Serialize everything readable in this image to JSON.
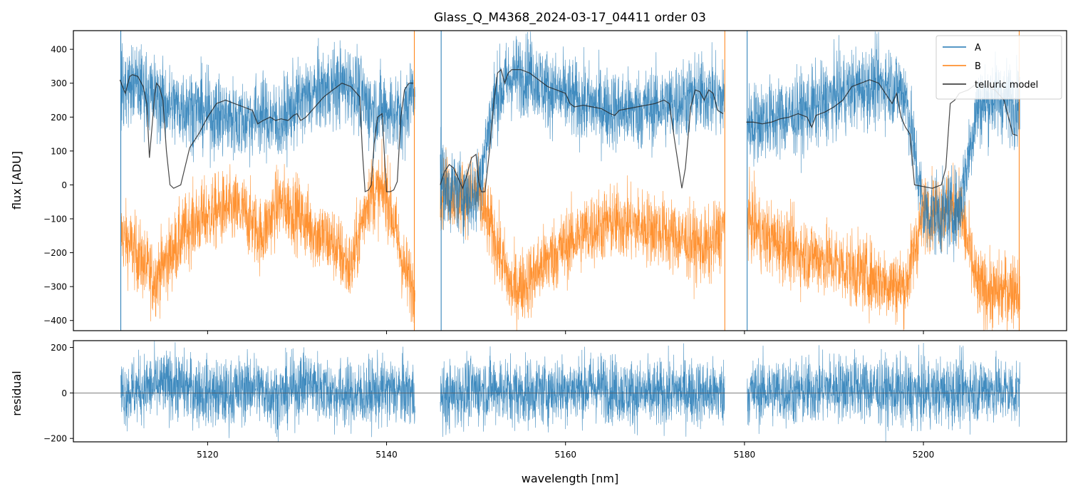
{
  "chart_data": [
    {
      "type": "line",
      "title": "Glass_Q_M4368_2024-03-17_04411  order 03",
      "xlabel": "",
      "ylabel": "flux [ADU]",
      "xlim": [
        5105,
        5216
      ],
      "ylim": [
        -430,
        455
      ],
      "yticks": [
        400,
        300,
        200,
        100,
        0,
        -100,
        -200,
        -300,
        -400
      ],
      "ytick_labels": [
        "400",
        "300",
        "200",
        "100",
        "0",
        "−100",
        "−200",
        "−300",
        "−400"
      ],
      "xticks": [
        5120,
        5140,
        5160,
        5180,
        5200
      ],
      "grid": false,
      "legend": {
        "placement": "top-right",
        "entries": [
          "A",
          "B",
          "telluric model"
        ]
      },
      "colors": {
        "A": "#1f77b4",
        "B": "#ff7f0e",
        "telluric model": "#262626"
      },
      "x_segments": [
        [
          5110.3,
          5143.2
        ],
        [
          5146.0,
          5177.8
        ],
        [
          5180.3,
          5210.8
        ]
      ],
      "series": [
        {
          "name": "A",
          "x": [
            5110.5,
            5112,
            5114,
            5116,
            5118,
            5120,
            5122,
            5124,
            5126,
            5128,
            5130,
            5132,
            5134,
            5136,
            5138,
            5140,
            5142,
            5143,
            5146.5,
            5148,
            5150,
            5152,
            5154,
            5156,
            5158,
            5160,
            5162,
            5164,
            5166,
            5168,
            5170,
            5172,
            5174,
            5176,
            5177.5,
            5180.5,
            5182,
            5184,
            5186,
            5188,
            5190,
            5192,
            5194,
            5196,
            5198,
            5200,
            5202,
            5204,
            5206,
            5208,
            5210.5
          ],
          "y": [
            280,
            300,
            260,
            230,
            230,
            210,
            200,
            190,
            210,
            180,
            240,
            270,
            290,
            300,
            230,
            220,
            200,
            300,
            -10,
            -20,
            -40,
            250,
            320,
            330,
            280,
            260,
            240,
            230,
            220,
            220,
            230,
            240,
            260,
            270,
            250,
            180,
            190,
            200,
            210,
            230,
            260,
            280,
            290,
            300,
            270,
            -80,
            -90,
            -70,
            230,
            260,
            240
          ],
          "noise": 60
        },
        {
          "name": "B",
          "x": [
            5110.5,
            5112,
            5114,
            5116,
            5118,
            5120,
            5122,
            5124,
            5126,
            5128,
            5130,
            5132,
            5134,
            5136,
            5138,
            5140,
            5142,
            5143,
            5146.5,
            5148,
            5150,
            5152,
            5154,
            5156,
            5158,
            5160,
            5162,
            5164,
            5166,
            5168,
            5170,
            5172,
            5174,
            5176,
            5177.5,
            5180.5,
            5182,
            5184,
            5186,
            5188,
            5190,
            5192,
            5194,
            5196,
            5198,
            5200,
            5202,
            5204,
            5206,
            5208,
            5210.5
          ],
          "y": [
            -150,
            -200,
            -280,
            -200,
            -120,
            -90,
            -70,
            -80,
            -150,
            -50,
            -80,
            -140,
            -170,
            -250,
            -30,
            -20,
            -250,
            -300,
            0,
            -40,
            -20,
            -150,
            -310,
            -280,
            -220,
            -180,
            -140,
            -120,
            -110,
            -120,
            -130,
            -150,
            -170,
            -190,
            -130,
            -100,
            -150,
            -170,
            -200,
            -210,
            -230,
            -250,
            -270,
            -290,
            -300,
            -80,
            -70,
            -60,
            -300,
            -320,
            -300
          ],
          "noise": 55
        },
        {
          "name": "telluric model",
          "x": [
            5110.2,
            5110.8,
            5111.3,
            5111.6,
            5112.2,
            5112.8,
            5113.2,
            5113.5,
            5114.1,
            5114.3,
            5114.6,
            5115.0,
            5115.4,
            5115.8,
            5116.2,
            5117.0,
            5118.0,
            5119.0,
            5120.0,
            5121.0,
            5122.0,
            5123.0,
            5124.0,
            5125.0,
            5125.6,
            5126.2,
            5127.0,
            5127.6,
            5128.2,
            5129.0,
            5129.6,
            5130.0,
            5130.4,
            5131.0,
            5132.0,
            5133.0,
            5134.0,
            5135.0,
            5136.0,
            5137.0,
            5137.3,
            5137.6,
            5138.0,
            5138.3,
            5138.6,
            5139.0,
            5139.5,
            5140.0,
            5140.4,
            5140.8,
            5141.2,
            5141.6,
            5142.0,
            5142.5,
            5143.0,
            5146.0,
            5146.5,
            5147.0,
            5147.5,
            5148.0,
            5148.5,
            5149.0,
            5149.5,
            5150.0,
            5150.3,
            5150.6,
            5151.0,
            5151.5,
            5152.0,
            5152.4,
            5152.8,
            5153.2,
            5153.6,
            5154.0,
            5155.0,
            5156.0,
            5157.0,
            5158.0,
            5159.0,
            5160.0,
            5160.5,
            5161.0,
            5162.0,
            5163.0,
            5164.0,
            5165.0,
            5165.5,
            5166.0,
            5167.0,
            5168.0,
            5169.0,
            5170.0,
            5171.0,
            5171.6,
            5172.2,
            5172.6,
            5173.0,
            5173.4,
            5174.0,
            5174.5,
            5175.0,
            5175.5,
            5176.0,
            5176.5,
            5177.0,
            5177.6,
            5180.2,
            5181.0,
            5182.0,
            5183.0,
            5184.0,
            5185.0,
            5186.0,
            5187.0,
            5187.5,
            5188.0,
            5188.5,
            5189.0,
            5190.0,
            5191.0,
            5191.5,
            5192.0,
            5193.0,
            5194.0,
            5195.0,
            5196.0,
            5196.5,
            5197.0,
            5197.5,
            5198.0,
            5198.5,
            5199.0,
            5200.0,
            5201.0,
            5202.0,
            5202.5,
            5203.0,
            5203.5,
            5204.0,
            5205.0,
            5206.0,
            5207.0,
            5208.0,
            5209.0,
            5209.5,
            5210.0,
            5210.5
          ],
          "y": [
            310,
            270,
            320,
            325,
            320,
            290,
            240,
            80,
            270,
            300,
            290,
            250,
            100,
            0,
            -10,
            0,
            110,
            150,
            200,
            240,
            250,
            240,
            230,
            220,
            180,
            190,
            200,
            190,
            195,
            190,
            205,
            210,
            190,
            200,
            230,
            260,
            280,
            300,
            290,
            260,
            100,
            -20,
            -15,
            0,
            120,
            200,
            210,
            -20,
            -20,
            -15,
            10,
            200,
            280,
            300,
            300,
            0,
            40,
            60,
            50,
            20,
            -10,
            30,
            80,
            90,
            10,
            -20,
            -20,
            100,
            250,
            330,
            340,
            300,
            330,
            340,
            340,
            330,
            310,
            290,
            280,
            270,
            240,
            230,
            235,
            230,
            225,
            210,
            205,
            220,
            225,
            230,
            235,
            240,
            250,
            240,
            130,
            60,
            -10,
            50,
            230,
            280,
            275,
            250,
            280,
            270,
            220,
            210,
            185,
            185,
            180,
            185,
            195,
            200,
            210,
            200,
            170,
            205,
            210,
            215,
            230,
            250,
            270,
            290,
            300,
            310,
            300,
            260,
            240,
            270,
            200,
            170,
            150,
            0,
            -5,
            -10,
            0,
            50,
            240,
            250,
            270,
            280,
            300,
            290,
            280,
            250,
            200,
            150,
            145
          ]
        }
      ]
    },
    {
      "type": "line",
      "title": "",
      "xlabel": "wavelength [nm]",
      "ylabel": "residual",
      "xlim": [
        5105,
        5216
      ],
      "ylim": [
        -215,
        230
      ],
      "yticks": [
        200,
        0,
        -200
      ],
      "ytick_labels": [
        "200",
        "0",
        "−200"
      ],
      "xticks": [
        5120,
        5140,
        5160,
        5180,
        5200
      ],
      "xtick_labels": [
        "5120",
        "5140",
        "5160",
        "5180",
        "5200"
      ],
      "grid": false,
      "reference_line": 0,
      "series": [
        {
          "x": [
            5110.3,
            5113,
            5116,
            5119,
            5122,
            5125,
            5128,
            5131,
            5134,
            5137,
            5140,
            5143.2,
            5146,
            5149,
            5152,
            5155,
            5158,
            5161,
            5164,
            5167,
            5170,
            5173,
            5175,
            5177.8,
            5180.3,
            5183,
            5186,
            5189,
            5192,
            5195,
            5198,
            5201,
            5204,
            5207,
            5210.8
          ],
          "y": [
            0,
            20,
            40,
            10,
            -10,
            30,
            -20,
            50,
            0,
            -10,
            10,
            0,
            -30,
            10,
            20,
            0,
            10,
            20,
            30,
            0,
            -10,
            10,
            0,
            0,
            0,
            10,
            0,
            20,
            30,
            10,
            0,
            0,
            10,
            20,
            0
          ],
          "color": "#1f77b4",
          "noise": 75
        }
      ]
    }
  ]
}
